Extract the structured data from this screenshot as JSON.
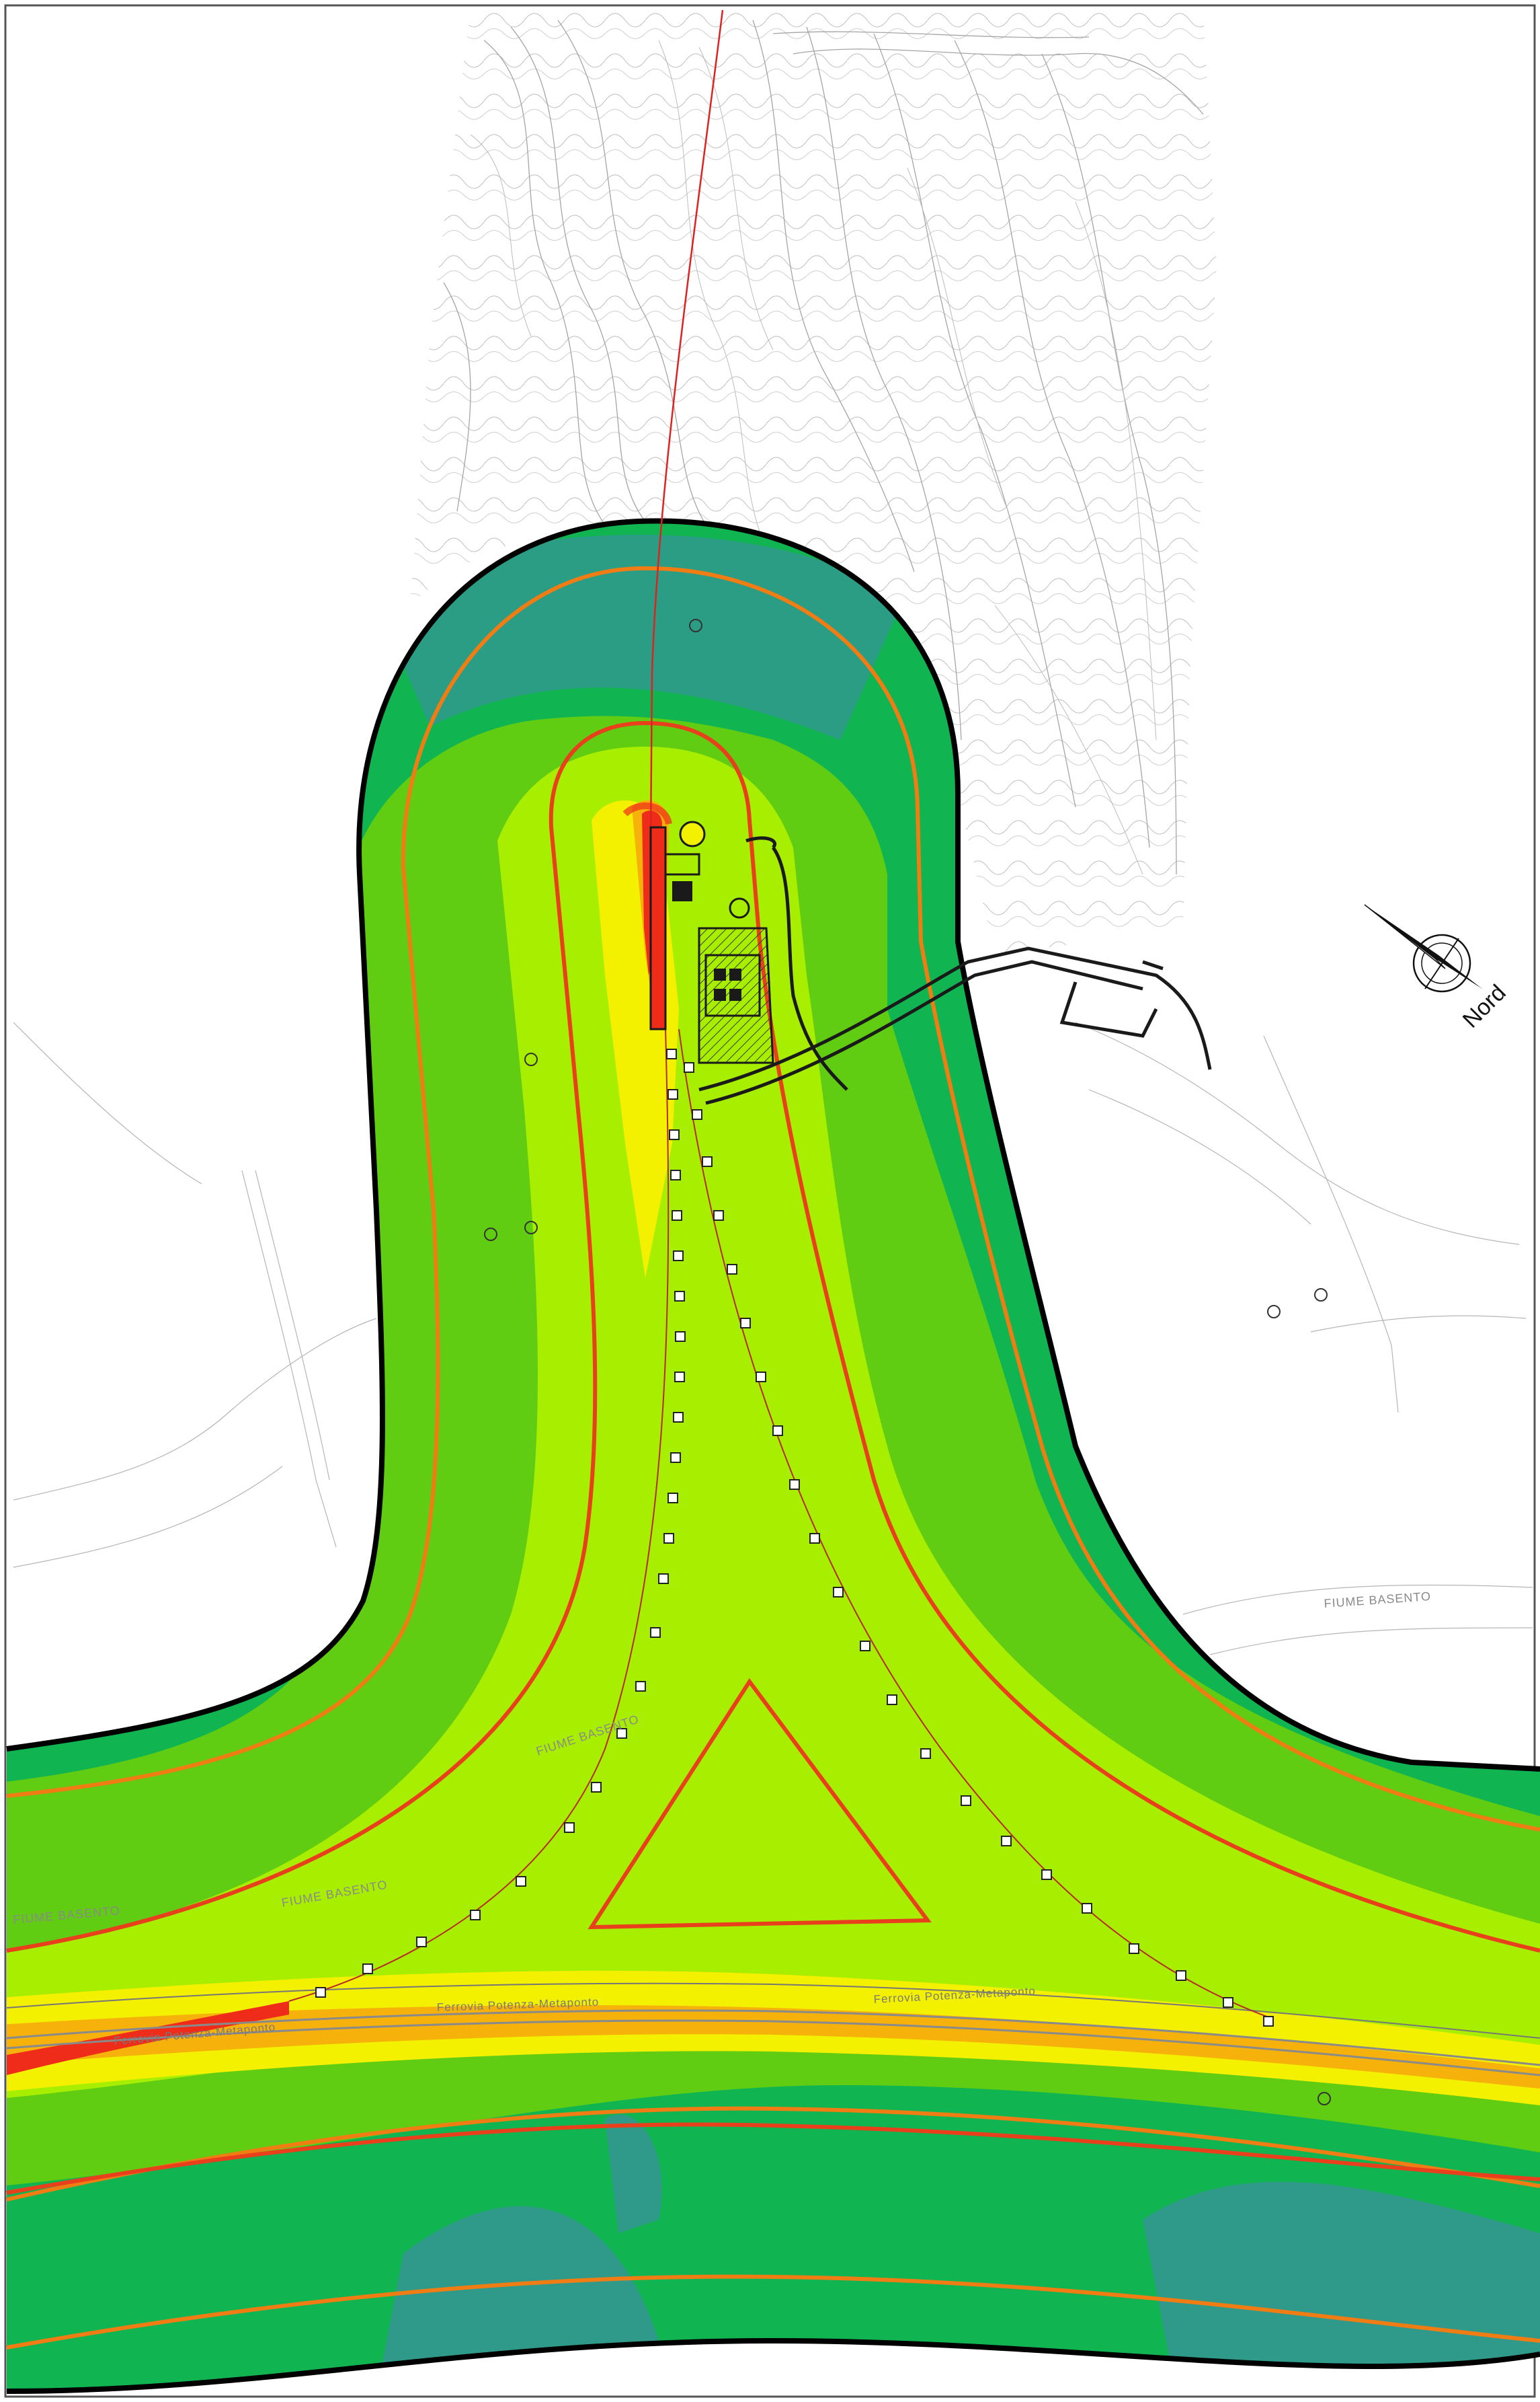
{
  "map": {
    "north_label": "Nord",
    "river_labels": [
      "FIUME BASENTO",
      "FIUME BASENTO",
      "FIUME BASENTO",
      "FIUME BASENTO"
    ],
    "railway_labels": [
      "Ferrovia Potenza-Metaponto",
      "Ferrovia Potenza-Metaponto",
      "Ferrovia Potenza-Metaponto"
    ]
  },
  "colors": {
    "background": "#ffffff",
    "contour_lines": "#9a9a9a",
    "boundary": "#000000",
    "isoline_outer": "#f07c14",
    "isoline_inner": "#e8401c",
    "band_teal": "#2f9a8a",
    "band_dark_green": "#10b552",
    "band_green": "#60cc12",
    "band_light_green": "#a8ee00",
    "band_yellow": "#f3f000",
    "band_orange": "#f6b10a",
    "band_red": "#ef2c1a",
    "pipeline": "#b52a2a",
    "plant": "#1a1a1a"
  },
  "legend_note": "Iso-level bands rendered as fill colours; no numeric legend is printed."
}
